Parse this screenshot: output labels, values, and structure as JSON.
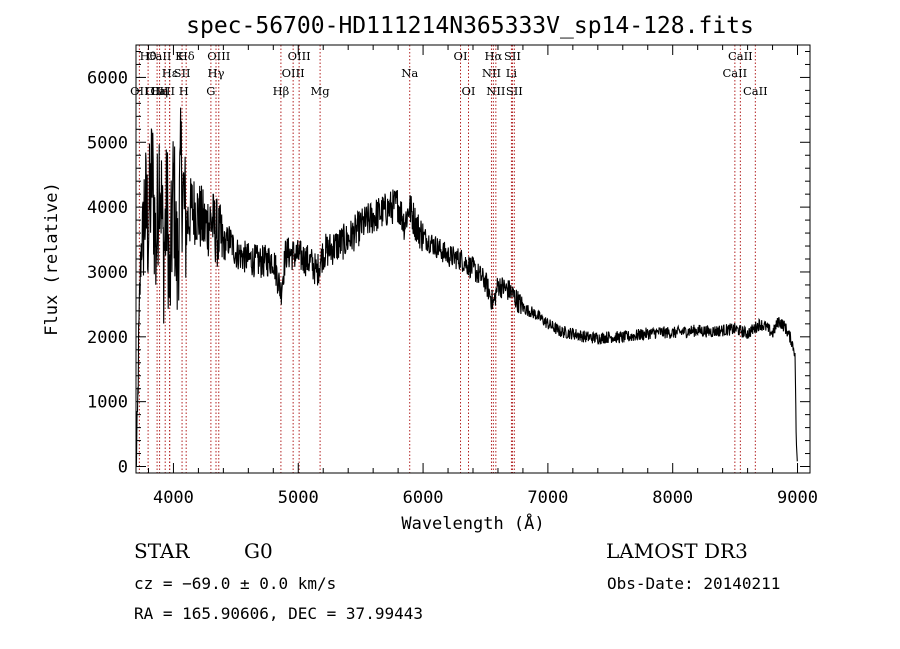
{
  "chart_data": {
    "type": "line",
    "title": "spec-56700-HD111214N365333V_sp14-128.fits",
    "xlabel": "Wavelength (Å)",
    "ylabel": "Flux (relative)",
    "xlim": [
      3700,
      9100
    ],
    "ylim": [
      -100,
      6500
    ],
    "xticks": [
      4000,
      5000,
      6000,
      7000,
      8000,
      9000
    ],
    "yticks": [
      0,
      1000,
      2000,
      3000,
      4000,
      5000,
      6000
    ],
    "grid": false,
    "series": [
      {
        "x": [
          3700,
          3710,
          3720,
          3730,
          3740,
          3750,
          3770,
          3800,
          3830,
          3860,
          3890,
          3920,
          3950,
          3970,
          4000,
          4030,
          4060,
          4100,
          4150,
          4200,
          4250,
          4300,
          4350,
          4400,
          4450,
          4500,
          4600,
          4700,
          4800,
          4861,
          4900,
          5000,
          5100,
          5150,
          5200,
          5300,
          5400,
          5500,
          5600,
          5700,
          5800,
          5850,
          5890,
          5950,
          6000,
          6100,
          6200,
          6300,
          6400,
          6500,
          6563,
          6600,
          6700,
          6800,
          6900,
          7000,
          7100,
          7200,
          7300,
          7400,
          7500,
          7600,
          7700,
          7800,
          7900,
          8000,
          8100,
          8200,
          8300,
          8400,
          8500,
          8600,
          8700,
          8750,
          8800,
          8850,
          8900,
          8950,
          8980,
          8990,
          9000
        ],
        "y": [
          0,
          400,
          1700,
          2600,
          3300,
          3600,
          4000,
          3700,
          4600,
          3300,
          4800,
          3200,
          4100,
          2600,
          4400,
          3000,
          4600,
          3700,
          4000,
          3900,
          3700,
          3800,
          3600,
          3400,
          3500,
          3300,
          3200,
          3150,
          3200,
          2700,
          3300,
          3250,
          3150,
          3000,
          3300,
          3400,
          3500,
          3700,
          3850,
          3950,
          4050,
          3750,
          4000,
          3700,
          3550,
          3400,
          3250,
          3200,
          3050,
          2850,
          2500,
          2800,
          2700,
          2450,
          2350,
          2200,
          2080,
          2050,
          2000,
          1980,
          2000,
          1990,
          2020,
          2050,
          2070,
          2060,
          2080,
          2100,
          2080,
          2100,
          2120,
          2050,
          2200,
          2150,
          2050,
          2250,
          2150,
          1950,
          1750,
          400,
          0
        ]
      }
    ],
    "lines": [
      {
        "label": "OII",
        "x": 3727,
        "row": 3
      },
      {
        "label": "Hθ",
        "x": 3797,
        "row": 1
      },
      {
        "label": "OIII",
        "x": 3869,
        "row": 3
      },
      {
        "label": "Hη",
        "x": 3889,
        "row": 3
      },
      {
        "label": "CaII K",
        "x": 3934,
        "row": 1
      },
      {
        "label": "CaII H",
        "x": 3969,
        "row": 3
      },
      {
        "label": "Hε",
        "x": 3970,
        "row": 2
      },
      {
        "label": "SII",
        "x": 4069,
        "row": 2
      },
      {
        "label": "Hδ",
        "x": 4102,
        "row": 1
      },
      {
        "label": "G",
        "x": 4300,
        "row": 3
      },
      {
        "label": "Hγ",
        "x": 4341,
        "row": 2
      },
      {
        "label": "OIII",
        "x": 4363,
        "row": 1
      },
      {
        "label": "Hβ",
        "x": 4861,
        "row": 3
      },
      {
        "label": "OIII",
        "x": 4959,
        "row": 2
      },
      {
        "label": "OIII",
        "x": 5007,
        "row": 1
      },
      {
        "label": "Mg",
        "x": 5175,
        "row": 3
      },
      {
        "label": "Na",
        "x": 5893,
        "row": 2
      },
      {
        "label": "OI",
        "x": 6300,
        "row": 1
      },
      {
        "label": "OI",
        "x": 6364,
        "row": 3
      },
      {
        "label": "NII",
        "x": 6548,
        "row": 2
      },
      {
        "label": "Hα",
        "x": 6563,
        "row": 1
      },
      {
        "label": "NII",
        "x": 6583,
        "row": 3
      },
      {
        "label": "Li",
        "x": 6708,
        "row": 2
      },
      {
        "label": "SII",
        "x": 6716,
        "row": 1
      },
      {
        "label": "SII",
        "x": 6731,
        "row": 3
      },
      {
        "label": "CaII",
        "x": 8498,
        "row": 2
      },
      {
        "label": "CaII",
        "x": 8542,
        "row": 1
      },
      {
        "label": "CaII",
        "x": 8662,
        "row": 3
      }
    ],
    "line_color": "#b22222"
  },
  "info": {
    "object_class": "STAR",
    "subclass": "G0",
    "survey": "LAMOST DR3",
    "cz": "cz = −69.0 ± 0.0 km/s",
    "obs_date": "Obs-Date: 20140211",
    "coords": "RA = 165.90606, DEC =  37.99443"
  }
}
